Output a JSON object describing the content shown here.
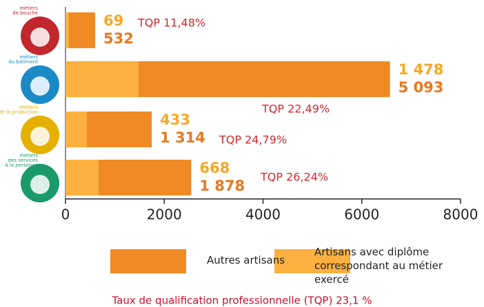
{
  "chart_data": {
    "type": "bar",
    "orientation": "horizontal",
    "stacked": true,
    "categories": [
      [
        "métiers",
        "de bouche"
      ],
      [
        "métiers",
        "du batiment"
      ],
      [
        "métiers",
        "de la production"
      ],
      [
        "métiers",
        "des services",
        "à la personne"
      ]
    ],
    "series": [
      {
        "name": "Artisans avec diplôme correspondant au métier exercé",
        "color": "#fbb040",
        "label_color": "#f7a823",
        "values": [
          69,
          1478,
          433,
          668
        ],
        "value_labels": [
          "69",
          "1 478",
          "433",
          "668"
        ]
      },
      {
        "name": "Autres artisans",
        "color": "#f08a24",
        "label_color": "#e8781e",
        "values": [
          532,
          5093,
          1314,
          1878
        ],
        "value_labels": [
          "532",
          "5 093",
          "1 314",
          "1 878"
        ]
      }
    ],
    "annotations": [
      "TQP 11,48%",
      "TQP 22,49%",
      "TQP 24,79%",
      "TQP 26,24%"
    ],
    "footer": "Taux de qualification professionnelle (TQP) 23,1 %",
    "xlim": [
      0,
      8000
    ],
    "xticks": [
      0,
      2000,
      4000,
      6000,
      8000
    ]
  }
}
